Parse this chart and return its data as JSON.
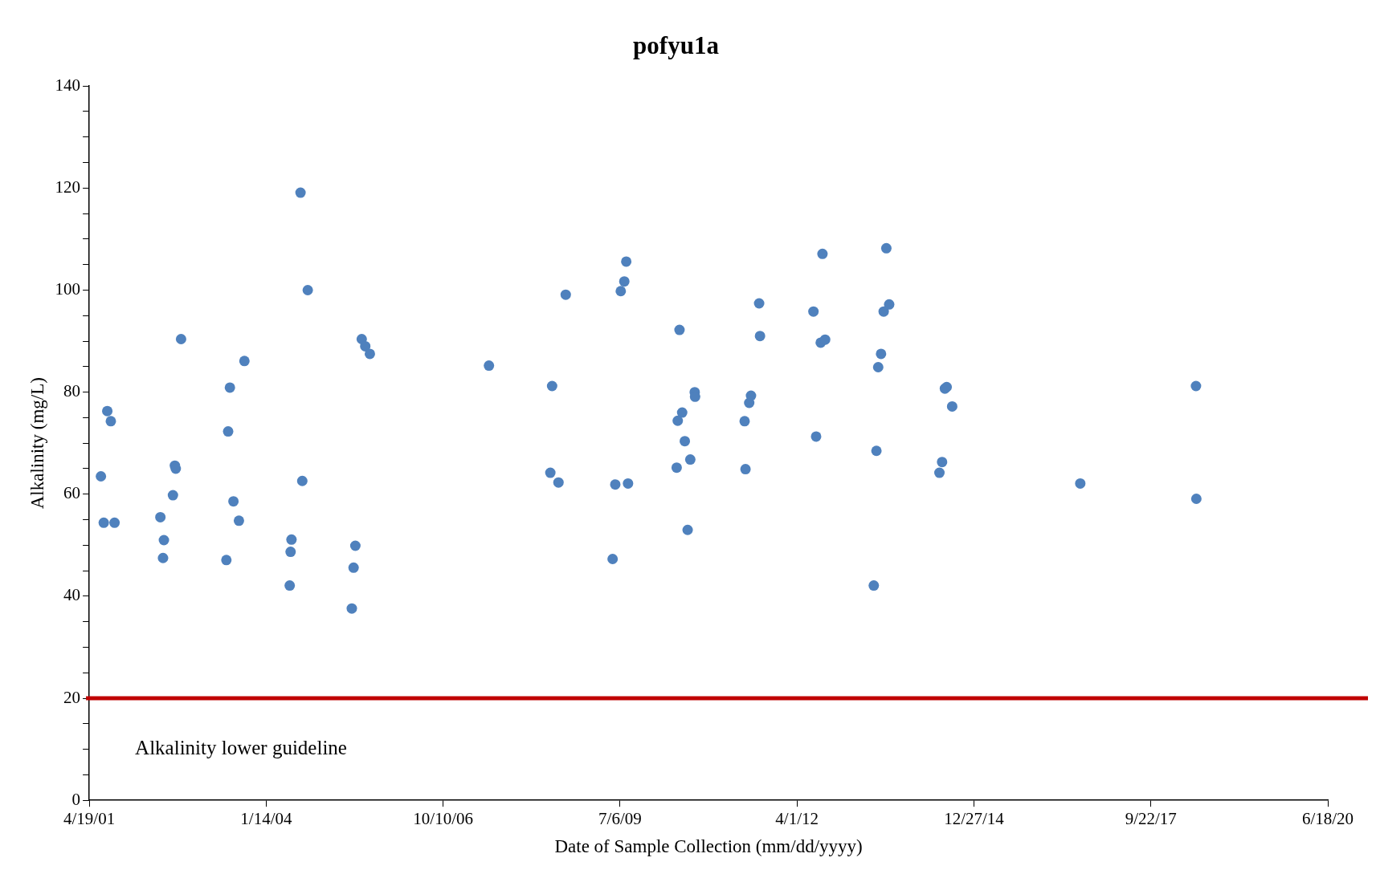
{
  "chart_data": {
    "type": "scatter",
    "title": "pofyu1a",
    "xlabel": "Date of Sample Collection (mm/dd/yyyy)",
    "ylabel": "Alkalinity (mg/L)",
    "x": [
      "2001-06-24",
      "2001-07-10",
      "2001-07-30",
      "2001-08-19",
      "2001-09-09",
      "2002-05-26",
      "2002-06-10",
      "2002-06-15",
      "2002-08-05",
      "2002-08-16",
      "2002-08-21",
      "2002-09-20",
      "2003-06-03",
      "2003-06-13",
      "2003-06-23",
      "2003-07-13",
      "2003-08-13",
      "2003-09-13",
      "2004-05-26",
      "2004-05-31",
      "2004-06-05",
      "2004-07-26",
      "2004-08-05",
      "2004-09-05",
      "2005-05-12",
      "2005-05-22",
      "2005-06-01",
      "2005-07-07",
      "2005-07-27",
      "2005-08-22",
      "2007-06-26",
      "2008-06-07",
      "2008-06-17",
      "2008-07-23",
      "2008-09-02",
      "2009-05-25",
      "2009-06-09",
      "2009-07-10",
      "2009-07-30",
      "2009-08-10",
      "2009-08-20",
      "2010-05-22",
      "2010-05-28",
      "2010-06-07",
      "2010-06-22",
      "2010-07-07",
      "2010-07-23",
      "2010-08-07",
      "2010-09-01",
      "2010-09-03",
      "2011-06-10",
      "2011-06-15",
      "2011-07-06",
      "2011-07-16",
      "2011-08-31",
      "2011-09-05",
      "2012-07-03",
      "2012-07-18",
      "2012-08-13",
      "2012-08-23",
      "2012-09-07",
      "2013-06-09",
      "2013-06-24",
      "2013-07-04",
      "2013-07-20",
      "2013-08-04",
      "2013-08-19",
      "2013-09-04",
      "2014-06-15",
      "2014-06-30",
      "2014-07-16",
      "2014-07-26",
      "2014-08-26",
      "2016-08-19",
      "2018-06-04",
      "2018-06-06"
    ],
    "series": [
      {
        "color": "#4f81bd",
        "values": [
          63.5,
          54.4,
          76.3,
          74.3,
          54.4,
          55.5,
          47.5,
          51,
          59.8,
          65.6,
          65,
          90.4,
          47.1,
          72.3,
          80.9,
          58.6,
          54.8,
          86.1,
          42.1,
          48.7,
          51.1,
          119.1,
          62.6,
          100,
          37.6,
          45.6,
          49.9,
          90.4,
          89,
          87.5,
          85.2,
          64.2,
          81.2,
          62.3,
          99.1,
          47.3,
          61.9,
          99.8,
          101.7,
          105.6,
          62.1,
          65.2,
          74.4,
          92.2,
          76,
          70.4,
          53,
          66.8,
          80,
          79.1,
          74.3,
          64.9,
          77.9,
          79.3,
          97.4,
          91,
          95.8,
          71.3,
          89.7,
          107.1,
          90.3,
          42.1,
          68.5,
          84.9,
          87.5,
          95.8,
          108.2,
          97.2,
          64.2,
          66.3,
          80.7,
          81,
          77.2,
          62.1,
          81.2,
          59.1
        ]
      }
    ],
    "xlim": [
      "2001-04-19",
      "2020-06-18"
    ],
    "xticks": [
      {
        "value": "2001-04-19",
        "label": "4/19/01"
      },
      {
        "value": "2004-01-14",
        "label": "1/14/04"
      },
      {
        "value": "2006-10-10",
        "label": "10/10/06"
      },
      {
        "value": "2009-07-06",
        "label": "7/6/09"
      },
      {
        "value": "2012-04-01",
        "label": "4/1/12"
      },
      {
        "value": "2014-12-27",
        "label": "12/27/14"
      },
      {
        "value": "2017-09-22",
        "label": "9/22/17"
      },
      {
        "value": "2020-06-18",
        "label": "6/18/20"
      }
    ],
    "ylim": [
      0,
      140
    ],
    "yticks": [
      0,
      {
        "value": 5,
        "label": null
      },
      {
        "value": 10,
        "label": null
      },
      {
        "value": 15,
        "label": null
      },
      20,
      {
        "value": 25,
        "label": null
      },
      {
        "value": 30,
        "label": null
      },
      {
        "value": 35,
        "label": null
      },
      40,
      {
        "value": 45,
        "label": null
      },
      {
        "value": 50,
        "label": null
      },
      {
        "value": 55,
        "label": null
      },
      60,
      {
        "value": 65,
        "label": null
      },
      {
        "value": 70,
        "label": null
      },
      {
        "value": 75,
        "label": null
      },
      80,
      {
        "value": 85,
        "label": null
      },
      {
        "value": 90,
        "label": null
      },
      {
        "value": 95,
        "label": null
      },
      100,
      {
        "value": 105,
        "label": null
      },
      {
        "value": 110,
        "label": null
      },
      {
        "value": 115,
        "label": null
      },
      120,
      {
        "value": 125,
        "label": null
      },
      {
        "value": 130,
        "label": null
      },
      {
        "value": 135,
        "label": null
      },
      140
    ],
    "ref_lines": [
      {
        "axis": "y",
        "value": 20,
        "label": "Alkalinity lower guideline",
        "color": "#c00000"
      }
    ],
    "marker": "circle",
    "grid": false,
    "legend": false
  }
}
